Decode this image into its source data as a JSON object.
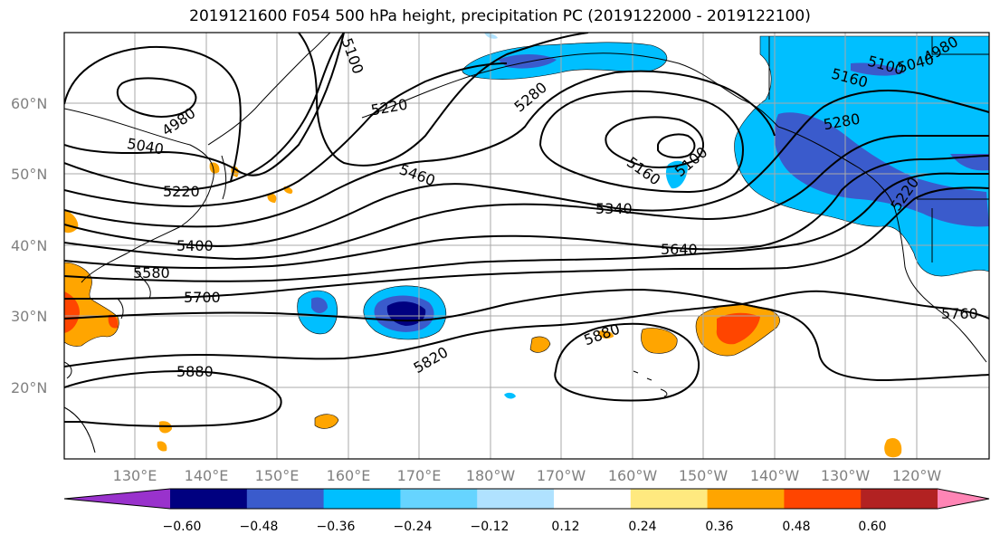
{
  "title": "2019121600 F054 500 hPa height, precipitation PC (2019122000 - 2019122100)",
  "lat_labels": [
    "60°N",
    "50°N",
    "40°N",
    "30°N",
    "20°N"
  ],
  "lon_labels": [
    "130°E",
    "140°E",
    "150°E",
    "160°E",
    "170°E",
    "180°W",
    "170°W",
    "160°W",
    "150°W",
    "140°W",
    "130°W",
    "120°W"
  ],
  "contour_labels": [
    "4980",
    "5040",
    "5100",
    "5160",
    "5220",
    "5280",
    "5340",
    "5400",
    "5460",
    "5580",
    "5640",
    "5700",
    "5760",
    "5820",
    "5880"
  ],
  "colorbar": {
    "colors": [
      "#9932CC",
      "#000080",
      "#3A5BCC",
      "#00BFFF",
      "#66D4FF",
      "#B0E2FF",
      "#FFFFFF",
      "#FFE97F",
      "#FFA500",
      "#FF4500",
      "#B22222",
      "#FF85B5"
    ],
    "tick_labels": [
      "−0.60",
      "−0.48",
      "−0.36",
      "−0.24",
      "−0.12",
      "0.12",
      "0.24",
      "0.36",
      "0.48",
      "0.60"
    ]
  },
  "palette": {
    "blue1": "#00BFFF",
    "blue2": "#3A5BCC",
    "blue3": "#000080",
    "blue0": "#B0E2FF",
    "orange": "#FFA500",
    "yellow": "#FFE97F",
    "red": "#FF4500"
  }
}
